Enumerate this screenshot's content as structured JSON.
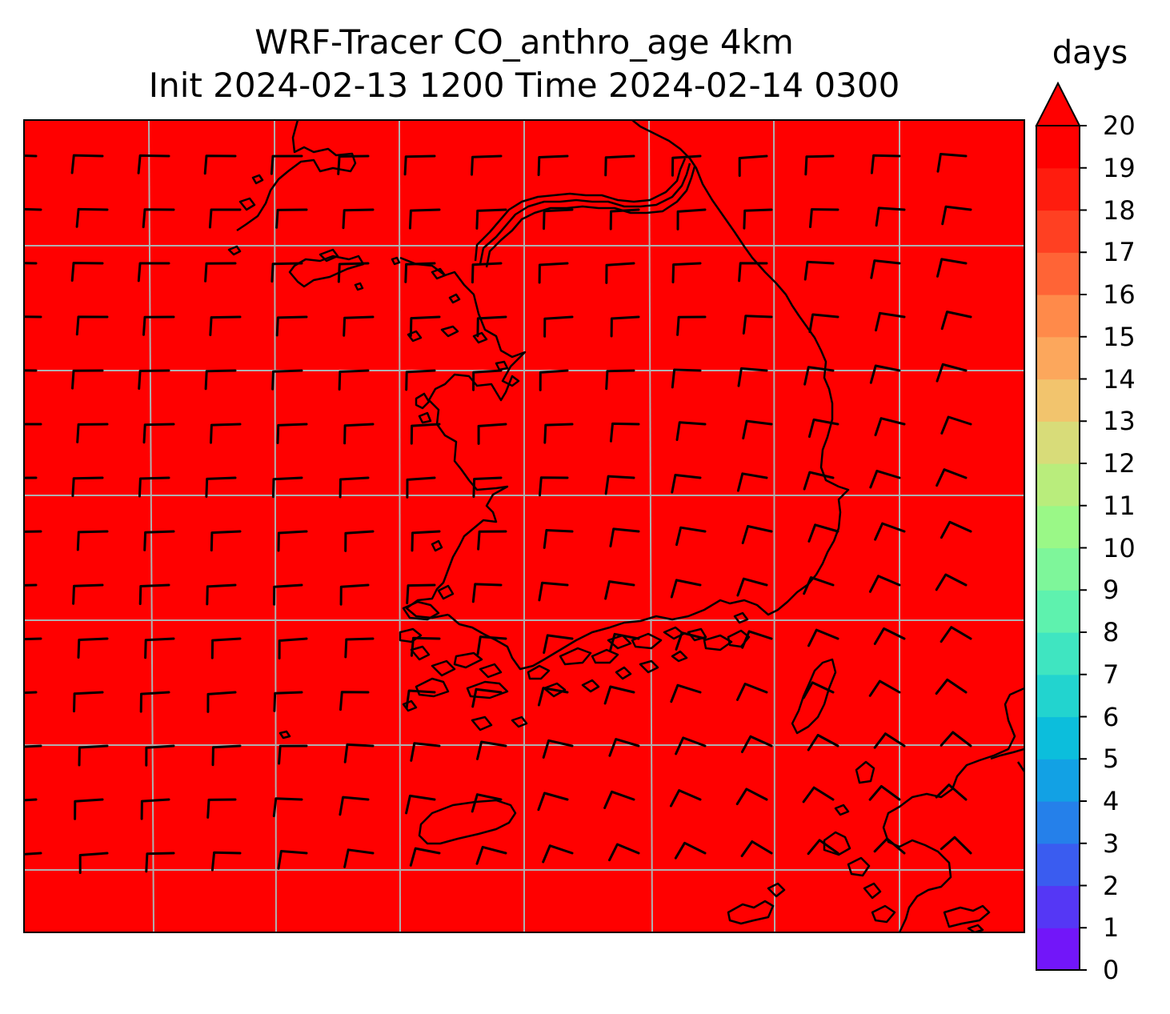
{
  "title": {
    "line1": "WRF-Tracer CO_anthro_age 4km",
    "line2": "Init 2024-02-13 1200 Time 2024-02-14 0300"
  },
  "map": {
    "field_color": "#ff0000",
    "field_value_days": 20,
    "grid_color": "#b0b0b0",
    "coastline_color": "#000000",
    "barb_color": "#000000"
  },
  "colorbar": {
    "unit": "days",
    "min": 0,
    "max": 20,
    "extend": "max",
    "ticks": [
      "0",
      "1",
      "2",
      "3",
      "4",
      "5",
      "6",
      "7",
      "8",
      "9",
      "10",
      "11",
      "12",
      "13",
      "14",
      "15",
      "16",
      "17",
      "18",
      "19",
      "20"
    ],
    "colors": [
      "#7216f9",
      "#5537f5",
      "#3a5cf0",
      "#2580ea",
      "#12a1e4",
      "#0cbedc",
      "#22d4cf",
      "#3fe5c1",
      "#5ef2ae",
      "#7ef69a",
      "#9af887",
      "#b9ed7c",
      "#d8dc79",
      "#f2c46d",
      "#fca75c",
      "#ff8a4a",
      "#ff6436",
      "#ff4022",
      "#ff1c0e",
      "#ff0000"
    ]
  }
}
